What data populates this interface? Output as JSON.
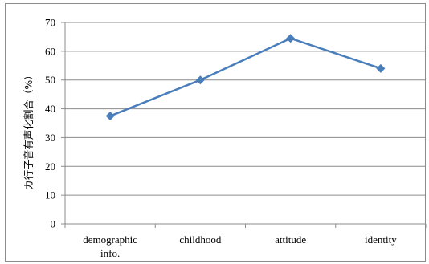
{
  "chart_data": {
    "type": "line",
    "categories": [
      "demographic\ninfo.",
      "childhood",
      "attitude",
      "identity"
    ],
    "series": [
      {
        "values": [
          37.5,
          50.0,
          64.5,
          54.0
        ],
        "color": "#4a7ebb",
        "marker": "diamond"
      }
    ],
    "ylabel": "カ行子音有声化割合（%）",
    "ylim": [
      0,
      70
    ],
    "yticks": [
      0,
      10,
      20,
      30,
      40,
      50,
      60,
      70
    ],
    "grid": true,
    "legend": "none"
  }
}
